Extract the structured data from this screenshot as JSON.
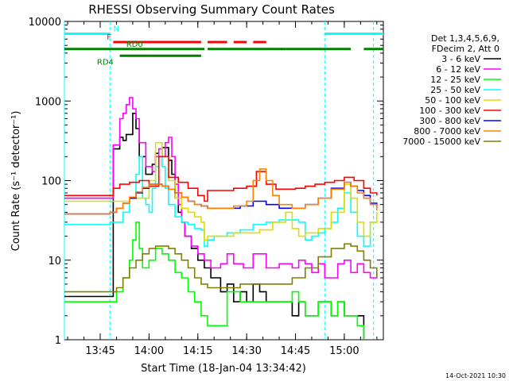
{
  "chart_data": {
    "type": "line",
    "title": "RHESSI Observing Summary Count Rates",
    "xlabel": "Start Time (18-Jan-04 13:34:42)",
    "ylabel": "Count Rate (s⁻¹ detector⁻¹)",
    "yscale": "log",
    "ylim": [
      1,
      10000
    ],
    "xlim_minutes": [
      0,
      98
    ],
    "x_ticks": [
      {
        "m": 11,
        "label": "13:45"
      },
      {
        "m": 26,
        "label": "14:00"
      },
      {
        "m": 41,
        "label": "14:15"
      },
      {
        "m": 56,
        "label": "14:30"
      },
      {
        "m": 71,
        "label": "14:45"
      },
      {
        "m": 86,
        "label": "15:00"
      }
    ],
    "y_ticks": [
      {
        "v": 1,
        "label": "1"
      },
      {
        "v": 10,
        "label": "10"
      },
      {
        "v": 100,
        "label": "100"
      },
      {
        "v": 1000,
        "label": "1000"
      },
      {
        "v": 10000,
        "label": "10000"
      }
    ],
    "grid": false,
    "legend_position": "right",
    "legend_header": [
      "Det 1,3,4,5,6,9,",
      "FDecim 2, Att 0"
    ],
    "series": [
      {
        "name": "3 - 6 keV",
        "color": "#000000",
        "x": [
          0,
          14,
          15,
          17,
          18,
          19,
          21,
          22,
          23,
          25,
          27,
          28,
          29,
          30,
          32,
          33,
          34,
          35,
          36,
          37,
          39,
          41,
          43,
          45,
          48,
          50,
          52,
          54,
          56,
          58,
          60,
          62,
          66,
          70,
          72,
          74,
          76,
          78,
          80,
          82,
          84,
          86,
          88,
          90,
          92,
          94,
          96
        ],
        "y": [
          3.5,
          3.5,
          250,
          350,
          320,
          380,
          700,
          450,
          200,
          120,
          160,
          220,
          200,
          260,
          180,
          120,
          60,
          40,
          30,
          20,
          14,
          10,
          8,
          6,
          4,
          5,
          3,
          4,
          3,
          5,
          4,
          3,
          3,
          2,
          3,
          2,
          2,
          3,
          3,
          2,
          3,
          2,
          2,
          2,
          1,
          1,
          1
        ]
      },
      {
        "name": "6 - 12 keV",
        "color": "#ff00ff",
        "x": [
          0,
          14,
          15,
          17,
          18,
          19,
          20,
          21,
          22,
          23,
          25,
          27,
          28,
          29,
          30,
          31,
          32,
          33,
          34,
          35,
          36,
          37,
          39,
          41,
          43,
          45,
          48,
          50,
          52,
          55,
          58,
          62,
          66,
          70,
          72,
          74,
          76,
          78,
          80,
          82,
          84,
          86,
          88,
          90,
          92,
          94,
          96
        ],
        "y": [
          60,
          60,
          280,
          600,
          700,
          900,
          1100,
          800,
          600,
          300,
          150,
          130,
          200,
          250,
          200,
          300,
          350,
          200,
          90,
          50,
          30,
          20,
          15,
          12,
          10,
          8,
          9,
          12,
          9,
          8,
          12,
          8,
          9,
          8,
          10,
          9,
          7,
          9,
          6,
          6,
          9,
          10,
          7,
          9,
          7,
          6,
          7
        ]
      },
      {
        "name": "12 - 25 keV",
        "color": "#00ff00",
        "x": [
          0,
          14,
          16,
          18,
          20,
          21,
          22,
          23,
          24,
          26,
          28,
          30,
          32,
          34,
          36,
          38,
          40,
          42,
          44,
          46,
          50,
          54,
          58,
          62,
          66,
          70,
          72,
          74,
          78,
          82,
          84,
          86,
          88,
          90,
          92,
          94,
          96
        ],
        "y": [
          3,
          3,
          4,
          6,
          10,
          18,
          30,
          14,
          8,
          10,
          14,
          12,
          10,
          7,
          6,
          4,
          3,
          2,
          1.5,
          1.5,
          4,
          3,
          3,
          3,
          3,
          4,
          3,
          2,
          3,
          2,
          3,
          2,
          2,
          1.5,
          1,
          1,
          1
        ]
      },
      {
        "name": "25 - 50 keV",
        "color": "#00ffff",
        "x": [
          0,
          14,
          16,
          18,
          20,
          22,
          23,
          24,
          25,
          26,
          27,
          28,
          29,
          30,
          31,
          32,
          34,
          36,
          38,
          40,
          42,
          43,
          44,
          46,
          50,
          54,
          58,
          62,
          66,
          70,
          72,
          74,
          76,
          78,
          80,
          82,
          84,
          86,
          88,
          90,
          92,
          94,
          96
        ],
        "y": [
          28,
          30,
          30,
          40,
          60,
          120,
          200,
          60,
          50,
          40,
          80,
          150,
          200,
          150,
          80,
          50,
          35,
          30,
          28,
          25,
          24,
          15,
          18,
          20,
          22,
          24,
          28,
          30,
          32,
          32,
          30,
          18,
          20,
          22,
          25,
          30,
          45,
          70,
          40,
          20,
          15,
          30,
          30
        ]
      },
      {
        "name": "50 - 100 keV",
        "color": "#dddd00",
        "x": [
          0,
          14,
          16,
          18,
          20,
          22,
          24,
          26,
          28,
          30,
          32,
          34,
          36,
          38,
          40,
          42,
          43,
          44,
          48,
          52,
          56,
          60,
          64,
          68,
          70,
          72,
          74,
          78,
          82,
          86,
          88,
          90,
          92,
          94,
          96
        ],
        "y": [
          55,
          55,
          55,
          55,
          60,
          60,
          60,
          100,
          300,
          200,
          100,
          60,
          45,
          40,
          35,
          30,
          18,
          20,
          20,
          22,
          22,
          24,
          30,
          40,
          25,
          20,
          22,
          25,
          40,
          90,
          60,
          30,
          20,
          30,
          40
        ]
      },
      {
        "name": "100 - 300 keV",
        "color": "#ff0000",
        "x": [
          0,
          14,
          15,
          17,
          20,
          23,
          26,
          29,
          32,
          35,
          38,
          41,
          43,
          44,
          48,
          52,
          56,
          59,
          62,
          65,
          68,
          71,
          74,
          77,
          80,
          83,
          86,
          89,
          92,
          94,
          96
        ],
        "y": [
          65,
          65,
          80,
          90,
          95,
          100,
          85,
          200,
          110,
          95,
          80,
          65,
          55,
          75,
          75,
          80,
          85,
          130,
          90,
          78,
          78,
          80,
          85,
          90,
          95,
          100,
          110,
          100,
          80,
          70,
          65
        ]
      },
      {
        "name": "300 - 800 keV",
        "color": "#0000ff",
        "x": [
          0,
          14,
          16,
          18,
          20,
          22,
          24,
          26,
          28,
          30,
          32,
          34,
          36,
          38,
          40,
          42,
          44,
          46,
          50,
          54,
          58,
          62,
          66,
          70,
          74,
          78,
          82,
          86,
          88,
          90,
          92,
          94,
          96
        ],
        "y": [
          38,
          40,
          45,
          52,
          60,
          70,
          80,
          90,
          90,
          85,
          78,
          70,
          62,
          55,
          50,
          48,
          45,
          45,
          45,
          48,
          55,
          50,
          45,
          45,
          50,
          60,
          80,
          95,
          85,
          75,
          65,
          52,
          45
        ]
      },
      {
        "name": "800 - 7000 keV",
        "color": "#ff8000",
        "x": [
          0,
          14,
          16,
          18,
          20,
          22,
          24,
          26,
          28,
          30,
          32,
          34,
          36,
          38,
          40,
          42,
          44,
          46,
          48,
          52,
          56,
          58,
          60,
          62,
          64,
          66,
          70,
          74,
          78,
          82,
          86,
          88,
          90,
          92,
          94,
          96
        ],
        "y": [
          38,
          40,
          45,
          52,
          62,
          72,
          82,
          90,
          90,
          85,
          78,
          70,
          62,
          55,
          50,
          48,
          45,
          45,
          45,
          48,
          55,
          100,
          140,
          100,
          65,
          50,
          45,
          50,
          60,
          78,
          95,
          85,
          70,
          60,
          50,
          42
        ]
      },
      {
        "name": "7000 - 15000 keV",
        "color": "#808000",
        "x": [
          0,
          14,
          16,
          18,
          20,
          22,
          24,
          26,
          28,
          30,
          32,
          34,
          36,
          38,
          40,
          42,
          44,
          46,
          50,
          54,
          58,
          62,
          66,
          70,
          74,
          78,
          82,
          86,
          88,
          90,
          92,
          94,
          96
        ],
        "y": [
          4,
          4,
          4.5,
          6,
          8,
          10,
          12,
          14,
          15,
          15,
          14,
          12,
          10,
          8,
          6,
          5,
          4.5,
          4.5,
          4.5,
          5,
          5,
          5,
          5,
          6,
          8,
          11,
          14,
          16,
          15,
          13,
          10,
          8,
          6
        ]
      }
    ],
    "flag_bars": [
      {
        "label": "N",
        "color": "#00ffff",
        "y": 7000,
        "segments": [
          [
            0,
            14
          ],
          [
            80,
            98
          ]
        ]
      },
      {
        "label": "F",
        "color": "#ff0000",
        "y": 5500,
        "segments": [
          [
            15,
            42
          ],
          [
            44,
            50
          ],
          [
            52,
            56
          ],
          [
            58,
            62
          ]
        ]
      },
      {
        "label": "RD0",
        "color": "#008000",
        "y": 4500,
        "segments": [
          [
            0,
            43
          ],
          [
            44,
            68
          ],
          [
            68,
            88
          ],
          [
            92,
            98
          ]
        ]
      },
      {
        "label": "RD4",
        "color": "#008000",
        "y": 3700,
        "segments": [
          [
            17,
            42
          ]
        ]
      }
    ],
    "vertical_lines": [
      {
        "m": 14,
        "color": "#00ffff",
        "style": "dash"
      },
      {
        "m": 80,
        "color": "#00ffff",
        "style": "dash"
      },
      {
        "m": 95,
        "color": "#00ffff",
        "style": "dash"
      },
      {
        "m": 0,
        "color": "#00ffff",
        "style": "solid"
      }
    ],
    "footer_stamp": "14-Oct-2021 10:30"
  }
}
